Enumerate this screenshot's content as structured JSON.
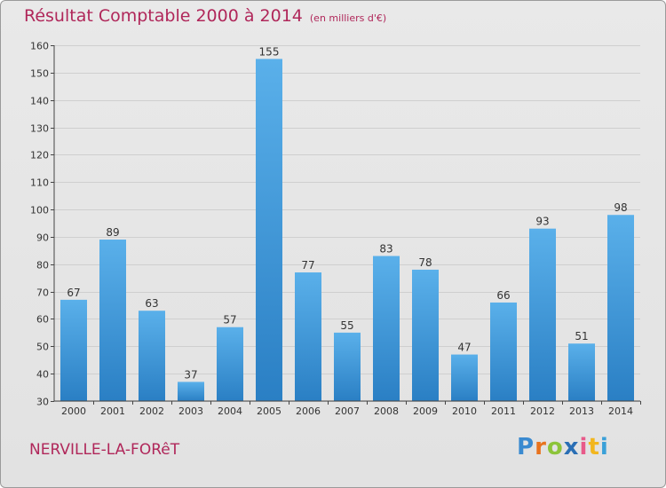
{
  "header": {
    "title": "Résultat Comptable 2000 à 2014",
    "unit": "(en milliers d'€)"
  },
  "footer": {
    "town": "NERVILLE-LA-FORêT",
    "logo_letters": [
      "P",
      "r",
      "o",
      "x",
      "i",
      "t",
      "i"
    ],
    "logo_colors": [
      "#3a8ad0",
      "#e8731e",
      "#8cc43a",
      "#2a6fb5",
      "#e85a8a",
      "#f2b61e",
      "#3aa0d8"
    ]
  },
  "colors": {
    "bar_top": "#5ab0ea",
    "bar_bottom": "#2a7fc4",
    "title": "#b0275a",
    "grid": "#cfcfcf",
    "axis": "#444444"
  },
  "chart_data": {
    "type": "bar",
    "title": "Résultat Comptable 2000 à 2014 (en milliers d'€)",
    "xlabel": "",
    "ylabel": "",
    "categories": [
      "2000",
      "2001",
      "2002",
      "2003",
      "2004",
      "2005",
      "2006",
      "2007",
      "2008",
      "2009",
      "2010",
      "2011",
      "2012",
      "2013",
      "2014"
    ],
    "values": [
      67,
      89,
      63,
      37,
      57,
      155,
      77,
      55,
      83,
      78,
      47,
      66,
      93,
      51,
      98
    ],
    "ylim": [
      30,
      160
    ],
    "yticks": [
      30,
      40,
      50,
      60,
      70,
      80,
      90,
      100,
      110,
      120,
      130,
      140,
      150,
      160
    ],
    "grid": true,
    "legend": "none"
  }
}
